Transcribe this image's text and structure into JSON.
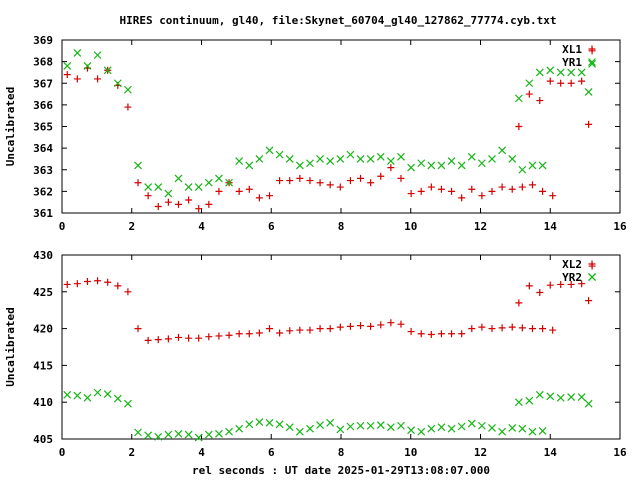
{
  "title": "HIRES continuum, gl40, file:Skynet_60704_gl40_127862_77774.cyb.txt",
  "colors": {
    "red": "#d40000",
    "green": "#16b516",
    "axis": "#000000"
  },
  "chart_data": [
    {
      "type": "scatter",
      "ylabel": "Uncalibrated",
      "xlabel": "",
      "xlim": [
        0,
        16
      ],
      "ylim": [
        361,
        369
      ],
      "xticks": [
        0,
        2,
        4,
        6,
        8,
        10,
        12,
        14,
        16
      ],
      "yticks": [
        361,
        362,
        363,
        364,
        365,
        366,
        367,
        368,
        369
      ],
      "legend_position": "top-right",
      "series": [
        {
          "name": "XL1",
          "marker": "plus",
          "color": "#d40000",
          "points": [
            [
              0.15,
              367.4
            ],
            [
              0.44,
              367.2
            ],
            [
              0.73,
              367.7
            ],
            [
              1.02,
              367.2
            ],
            [
              1.31,
              367.6
            ],
            [
              1.6,
              366.9
            ],
            [
              1.89,
              365.9
            ],
            [
              2.18,
              362.4
            ],
            [
              2.47,
              361.8
            ],
            [
              2.76,
              361.3
            ],
            [
              3.05,
              361.5
            ],
            [
              3.34,
              361.4
            ],
            [
              3.63,
              361.6
            ],
            [
              3.92,
              361.2
            ],
            [
              4.21,
              361.4
            ],
            [
              4.5,
              362.0
            ],
            [
              4.79,
              362.4
            ],
            [
              5.08,
              362.0
            ],
            [
              5.37,
              362.1
            ],
            [
              5.66,
              361.7
            ],
            [
              5.95,
              361.8
            ],
            [
              6.24,
              362.5
            ],
            [
              6.53,
              362.5
            ],
            [
              6.82,
              362.6
            ],
            [
              7.11,
              362.5
            ],
            [
              7.4,
              362.4
            ],
            [
              7.69,
              362.3
            ],
            [
              7.98,
              362.2
            ],
            [
              8.27,
              362.5
            ],
            [
              8.56,
              362.6
            ],
            [
              8.85,
              362.4
            ],
            [
              9.14,
              362.7
            ],
            [
              9.43,
              363.1
            ],
            [
              9.72,
              362.6
            ],
            [
              10.01,
              361.9
            ],
            [
              10.3,
              362.0
            ],
            [
              10.59,
              362.2
            ],
            [
              10.88,
              362.1
            ],
            [
              11.17,
              362.0
            ],
            [
              11.46,
              361.7
            ],
            [
              11.75,
              362.1
            ],
            [
              12.04,
              361.8
            ],
            [
              12.33,
              362.0
            ],
            [
              12.62,
              362.2
            ],
            [
              12.91,
              362.1
            ],
            [
              13.2,
              362.2
            ],
            [
              13.49,
              362.3
            ],
            [
              13.78,
              362.0
            ],
            [
              14.07,
              361.8
            ],
            [
              13.1,
              365.0
            ],
            [
              13.4,
              366.5
            ],
            [
              13.7,
              366.2
            ],
            [
              14.0,
              367.1
            ],
            [
              14.3,
              367.0
            ],
            [
              14.6,
              367.0
            ],
            [
              14.9,
              367.1
            ],
            [
              15.1,
              365.1
            ],
            [
              15.2,
              368.5
            ]
          ]
        },
        {
          "name": "YR1",
          "marker": "x",
          "color": "#16b516",
          "points": [
            [
              0.15,
              367.8
            ],
            [
              0.44,
              368.4
            ],
            [
              0.73,
              367.8
            ],
            [
              1.02,
              368.3
            ],
            [
              1.31,
              367.6
            ],
            [
              1.6,
              367.0
            ],
            [
              1.89,
              366.7
            ],
            [
              2.18,
              363.2
            ],
            [
              2.47,
              362.2
            ],
            [
              2.76,
              362.2
            ],
            [
              3.05,
              361.9
            ],
            [
              3.34,
              362.6
            ],
            [
              3.63,
              362.2
            ],
            [
              3.92,
              362.2
            ],
            [
              4.21,
              362.4
            ],
            [
              4.5,
              362.6
            ],
            [
              4.79,
              362.4
            ],
            [
              5.08,
              363.4
            ],
            [
              5.37,
              363.2
            ],
            [
              5.66,
              363.5
            ],
            [
              5.95,
              363.9
            ],
            [
              6.24,
              363.7
            ],
            [
              6.53,
              363.5
            ],
            [
              6.82,
              363.2
            ],
            [
              7.11,
              363.3
            ],
            [
              7.4,
              363.5
            ],
            [
              7.69,
              363.4
            ],
            [
              7.98,
              363.5
            ],
            [
              8.27,
              363.7
            ],
            [
              8.56,
              363.5
            ],
            [
              8.85,
              363.5
            ],
            [
              9.14,
              363.6
            ],
            [
              9.43,
              363.4
            ],
            [
              9.72,
              363.6
            ],
            [
              10.01,
              363.1
            ],
            [
              10.3,
              363.3
            ],
            [
              10.59,
              363.2
            ],
            [
              10.88,
              363.2
            ],
            [
              11.17,
              363.4
            ],
            [
              11.46,
              363.2
            ],
            [
              11.75,
              363.6
            ],
            [
              12.04,
              363.3
            ],
            [
              12.33,
              363.5
            ],
            [
              12.62,
              363.9
            ],
            [
              12.91,
              363.5
            ],
            [
              13.2,
              363.0
            ],
            [
              13.49,
              363.2
            ],
            [
              13.78,
              363.2
            ],
            [
              13.1,
              366.3
            ],
            [
              13.4,
              367.0
            ],
            [
              13.7,
              367.5
            ],
            [
              14.0,
              367.6
            ],
            [
              14.3,
              367.5
            ],
            [
              14.6,
              367.5
            ],
            [
              14.9,
              367.5
            ],
            [
              15.1,
              366.6
            ],
            [
              15.2,
              367.9
            ]
          ]
        }
      ]
    },
    {
      "type": "scatter",
      "ylabel": "Uncalibrated",
      "xlabel": "rel seconds : UT date 2025-01-29T13:08:07.000",
      "xlim": [
        0,
        16
      ],
      "ylim": [
        405,
        430
      ],
      "xticks": [
        0,
        2,
        4,
        6,
        8,
        10,
        12,
        14,
        16
      ],
      "yticks": [
        405,
        410,
        415,
        420,
        425,
        430
      ],
      "legend_position": "top-right",
      "series": [
        {
          "name": "XL2",
          "marker": "plus",
          "color": "#d40000",
          "points": [
            [
              0.15,
              426.0
            ],
            [
              0.44,
              426.1
            ],
            [
              0.73,
              426.4
            ],
            [
              1.02,
              426.5
            ],
            [
              1.31,
              426.3
            ],
            [
              1.6,
              425.8
            ],
            [
              1.89,
              425.0
            ],
            [
              2.18,
              420.0
            ],
            [
              2.47,
              418.4
            ],
            [
              2.76,
              418.5
            ],
            [
              3.05,
              418.6
            ],
            [
              3.34,
              418.8
            ],
            [
              3.63,
              418.7
            ],
            [
              3.92,
              418.7
            ],
            [
              4.21,
              418.9
            ],
            [
              4.5,
              419.0
            ],
            [
              4.79,
              419.1
            ],
            [
              5.08,
              419.3
            ],
            [
              5.37,
              419.3
            ],
            [
              5.66,
              419.4
            ],
            [
              5.95,
              420.0
            ],
            [
              6.24,
              419.4
            ],
            [
              6.53,
              419.7
            ],
            [
              6.82,
              419.8
            ],
            [
              7.11,
              419.8
            ],
            [
              7.4,
              420.0
            ],
            [
              7.69,
              420.0
            ],
            [
              7.98,
              420.2
            ],
            [
              8.27,
              420.3
            ],
            [
              8.56,
              420.4
            ],
            [
              8.85,
              420.3
            ],
            [
              9.14,
              420.5
            ],
            [
              9.43,
              420.8
            ],
            [
              9.72,
              420.6
            ],
            [
              10.01,
              419.6
            ],
            [
              10.3,
              419.3
            ],
            [
              10.59,
              419.2
            ],
            [
              10.88,
              419.3
            ],
            [
              11.17,
              419.3
            ],
            [
              11.46,
              419.3
            ],
            [
              11.75,
              420.0
            ],
            [
              12.04,
              420.2
            ],
            [
              12.33,
              420.0
            ],
            [
              12.62,
              420.1
            ],
            [
              12.91,
              420.2
            ],
            [
              13.2,
              420.1
            ],
            [
              13.49,
              420.0
            ],
            [
              13.78,
              420.0
            ],
            [
              14.07,
              419.8
            ],
            [
              13.1,
              423.5
            ],
            [
              13.4,
              425.8
            ],
            [
              13.7,
              424.9
            ],
            [
              14.0,
              425.9
            ],
            [
              14.3,
              426.0
            ],
            [
              14.6,
              426.0
            ],
            [
              14.9,
              426.1
            ],
            [
              15.1,
              423.8
            ],
            [
              15.2,
              428.5
            ]
          ]
        },
        {
          "name": "YR2",
          "marker": "x",
          "color": "#16b516",
          "points": [
            [
              0.15,
              411.0
            ],
            [
              0.44,
              410.9
            ],
            [
              0.73,
              410.6
            ],
            [
              1.02,
              411.3
            ],
            [
              1.31,
              411.1
            ],
            [
              1.6,
              410.5
            ],
            [
              1.89,
              409.8
            ],
            [
              2.18,
              405.9
            ],
            [
              2.47,
              405.5
            ],
            [
              2.76,
              405.3
            ],
            [
              3.05,
              405.6
            ],
            [
              3.34,
              405.7
            ],
            [
              3.63,
              405.6
            ],
            [
              3.92,
              405.2
            ],
            [
              4.21,
              405.6
            ],
            [
              4.5,
              405.7
            ],
            [
              4.79,
              406.0
            ],
            [
              5.08,
              406.4
            ],
            [
              5.37,
              407.0
            ],
            [
              5.66,
              407.3
            ],
            [
              5.95,
              407.2
            ],
            [
              6.24,
              407.0
            ],
            [
              6.53,
              406.6
            ],
            [
              6.82,
              406.0
            ],
            [
              7.11,
              406.4
            ],
            [
              7.4,
              406.9
            ],
            [
              7.69,
              407.2
            ],
            [
              7.98,
              406.3
            ],
            [
              8.27,
              406.7
            ],
            [
              8.56,
              406.8
            ],
            [
              8.85,
              406.8
            ],
            [
              9.14,
              406.9
            ],
            [
              9.43,
              406.6
            ],
            [
              9.72,
              406.8
            ],
            [
              10.01,
              406.2
            ],
            [
              10.3,
              406.0
            ],
            [
              10.59,
              406.4
            ],
            [
              10.88,
              406.6
            ],
            [
              11.17,
              406.4
            ],
            [
              11.46,
              406.7
            ],
            [
              11.75,
              407.1
            ],
            [
              12.04,
              406.8
            ],
            [
              12.33,
              406.5
            ],
            [
              12.62,
              406.0
            ],
            [
              12.91,
              406.5
            ],
            [
              13.2,
              406.4
            ],
            [
              13.49,
              406.0
            ],
            [
              13.78,
              406.1
            ],
            [
              13.1,
              410.0
            ],
            [
              13.4,
              410.2
            ],
            [
              13.7,
              411.0
            ],
            [
              14.0,
              410.8
            ],
            [
              14.3,
              410.6
            ],
            [
              14.6,
              410.7
            ],
            [
              14.9,
              410.7
            ],
            [
              15.1,
              409.8
            ],
            [
              15.2,
              427.0
            ]
          ]
        }
      ]
    }
  ]
}
